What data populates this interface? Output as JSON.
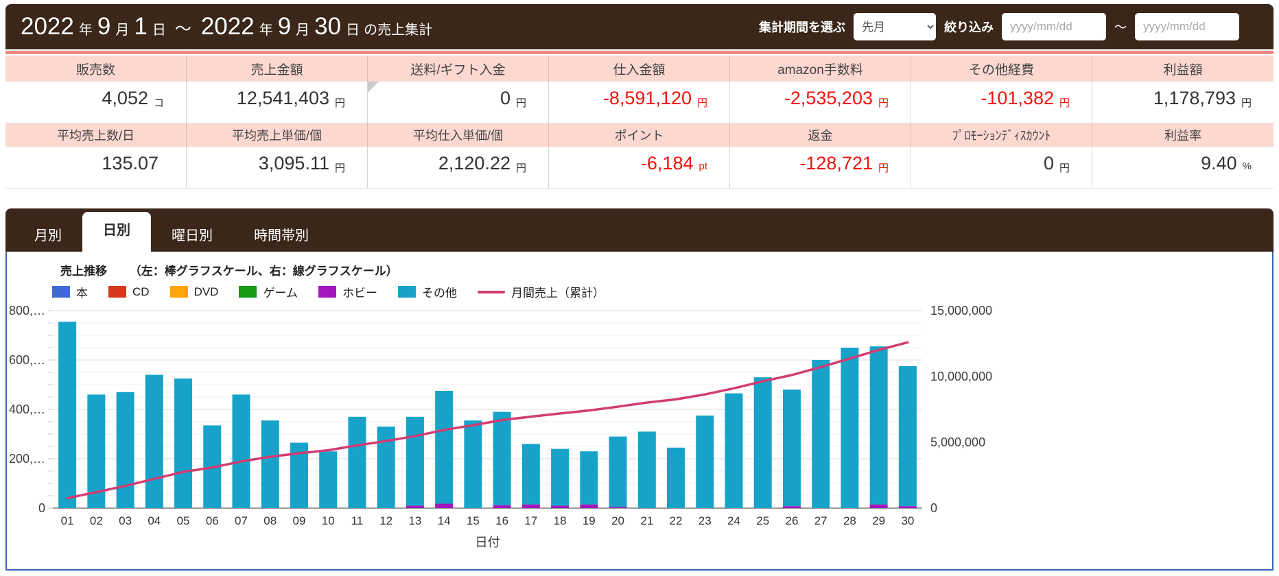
{
  "header": {
    "title_segments": [
      {
        "text": "2022",
        "size": "big"
      },
      {
        "text": "年",
        "size": "small"
      },
      {
        "text": "9",
        "size": "big"
      },
      {
        "text": "月",
        "size": "small"
      },
      {
        "text": "1",
        "size": "big"
      },
      {
        "text": "日",
        "size": "small"
      },
      {
        "text": "～",
        "size": "tilde"
      },
      {
        "text": "2022",
        "size": "big"
      },
      {
        "text": "年",
        "size": "small"
      },
      {
        "text": "9",
        "size": "big"
      },
      {
        "text": "月",
        "size": "small"
      },
      {
        "text": "30",
        "size": "big"
      },
      {
        "text": "日",
        "size": "small"
      },
      {
        "text": "の売上集計",
        "size": "small"
      }
    ],
    "period_label": "集計期間を選ぶ",
    "period_value": "先月",
    "filter_label": "絞り込み",
    "date_from_placeholder": "yyyy/mm/dd",
    "date_to_placeholder": "yyyy/mm/dd",
    "range_separator": "～"
  },
  "summary": {
    "rows": [
      {
        "cells": [
          {
            "label": "販売数",
            "value": "4,052",
            "unit": "コ",
            "negative": false
          },
          {
            "label": "売上金額",
            "value": "12,541,403",
            "unit": "円",
            "negative": false
          },
          {
            "label": "送料/ギフト入金",
            "value": "0",
            "unit": "円",
            "negative": false,
            "corner_fold": true
          },
          {
            "label": "仕入金額",
            "value": "-8,591,120",
            "unit": "円",
            "negative": true
          },
          {
            "label": "amazon手数料",
            "value": "-2,535,203",
            "unit": "円",
            "negative": true
          },
          {
            "label": "その他経費",
            "value": "-101,382",
            "unit": "円",
            "negative": true
          },
          {
            "label": "利益額",
            "value": "1,178,793",
            "unit": "円",
            "negative": false
          }
        ]
      },
      {
        "cells": [
          {
            "label": "平均売上数/日",
            "value": "135.07",
            "unit": "",
            "negative": false
          },
          {
            "label": "平均売上単価/個",
            "value": "3,095.11",
            "unit": "円",
            "negative": false
          },
          {
            "label": "平均仕入単価/個",
            "value": "2,120.22",
            "unit": "円",
            "negative": false
          },
          {
            "label": "ポイント",
            "value": "-6,184",
            "unit": "pt",
            "negative": true
          },
          {
            "label": "返金",
            "value": "-128,721",
            "unit": "円",
            "negative": true
          },
          {
            "label": "ﾌﾟﾛﾓｰｼｮﾝﾃﾞｨｽｶｳﾝﾄ",
            "value": "0",
            "unit": "円",
            "negative": false,
            "narrow": true
          },
          {
            "label": "利益率",
            "value": "9.40",
            "unit": "%",
            "negative": false
          }
        ]
      }
    ]
  },
  "tabs": [
    {
      "id": "monthly",
      "label": "月別",
      "active": false
    },
    {
      "id": "daily",
      "label": "日別",
      "active": true
    },
    {
      "id": "weekday",
      "label": "曜日別",
      "active": false
    },
    {
      "id": "timeband",
      "label": "時間帯別",
      "active": false
    }
  ],
  "chart_data": {
    "type": "bar+line",
    "title": "売上推移",
    "subtitle": "（左：棒グラフスケール、右：線グラフスケール）",
    "xlabel": "日付",
    "categories": [
      "01",
      "02",
      "03",
      "04",
      "05",
      "06",
      "07",
      "08",
      "09",
      "10",
      "11",
      "12",
      "13",
      "14",
      "15",
      "16",
      "17",
      "18",
      "19",
      "20",
      "21",
      "22",
      "23",
      "24",
      "25",
      "26",
      "27",
      "28",
      "29",
      "30"
    ],
    "bar_series": [
      {
        "key": "books",
        "name": "本",
        "color": "#4169d6",
        "values": [
          0,
          0,
          0,
          0,
          0,
          0,
          0,
          0,
          0,
          0,
          0,
          0,
          0,
          0,
          0,
          0,
          0,
          0,
          0,
          0,
          0,
          0,
          0,
          0,
          0,
          0,
          0,
          0,
          0,
          0
        ]
      },
      {
        "key": "cd",
        "name": "CD",
        "color": "#d63a1d",
        "values": [
          0,
          0,
          0,
          0,
          0,
          0,
          0,
          0,
          0,
          0,
          0,
          0,
          0,
          0,
          0,
          0,
          0,
          0,
          0,
          0,
          0,
          0,
          0,
          0,
          0,
          0,
          0,
          0,
          0,
          0
        ]
      },
      {
        "key": "dvd",
        "name": "DVD",
        "color": "#ffa408",
        "values": [
          0,
          0,
          0,
          0,
          0,
          0,
          0,
          0,
          0,
          0,
          0,
          0,
          0,
          0,
          0,
          0,
          0,
          0,
          0,
          0,
          0,
          0,
          0,
          0,
          0,
          0,
          0,
          0,
          0,
          0
        ]
      },
      {
        "key": "game",
        "name": "ゲーム",
        "color": "#159b15",
        "values": [
          0,
          0,
          0,
          0,
          0,
          0,
          0,
          0,
          0,
          0,
          0,
          0,
          0,
          0,
          0,
          0,
          0,
          0,
          0,
          0,
          0,
          0,
          0,
          0,
          0,
          0,
          0,
          0,
          0,
          0
        ]
      },
      {
        "key": "hobby",
        "name": "ホビー",
        "color": "#a317bd",
        "values": [
          0,
          0,
          0,
          0,
          0,
          0,
          0,
          0,
          0,
          0,
          0,
          0,
          10000,
          18000,
          0,
          12000,
          15000,
          10000,
          15000,
          5000,
          0,
          0,
          0,
          0,
          0,
          8000,
          0,
          0,
          15000,
          8000
        ]
      },
      {
        "key": "other",
        "name": "その他",
        "color": "#17a3c9",
        "values": [
          755000,
          460000,
          470000,
          540000,
          525000,
          335000,
          460000,
          355000,
          265000,
          230000,
          370000,
          330000,
          360000,
          457000,
          355000,
          378000,
          245000,
          230000,
          215000,
          285000,
          310000,
          245000,
          375000,
          465000,
          530000,
          472000,
          600000,
          650000,
          640000,
          567000
        ]
      }
    ],
    "line_series": {
      "key": "cumulative",
      "name": "月間売上（累計）",
      "color": "#d23c74",
      "values": [
        755000,
        1215000,
        1685000,
        2225000,
        2750000,
        3085000,
        3545000,
        3900000,
        4165000,
        4395000,
        4765000,
        5095000,
        5465000,
        5940000,
        6295000,
        6685000,
        6945000,
        7185000,
        7415000,
        7705000,
        8015000,
        8260000,
        8635000,
        9100000,
        9630000,
        10110000,
        10710000,
        11360000,
        12015000,
        12590000
      ]
    },
    "left_axis": {
      "max": 800000,
      "major_step": 200000,
      "minor_step": 50000,
      "tick_labels": [
        "800,…",
        "600,…",
        "400,…",
        "200,…",
        "0"
      ]
    },
    "right_axis": {
      "max": 15000000,
      "major_step": 5000000,
      "tick_labels": [
        "15,000,000",
        "10,000,000",
        "5,000,000",
        "0"
      ]
    },
    "legend_position": "top",
    "grid": true
  },
  "colors": {
    "header_brown": "#3a2719",
    "pink_strip": "#ee8784",
    "table_header_pink": "#fcd8d1",
    "negative_red": "#f0140c",
    "panel_border_blue": "#3465ab"
  }
}
